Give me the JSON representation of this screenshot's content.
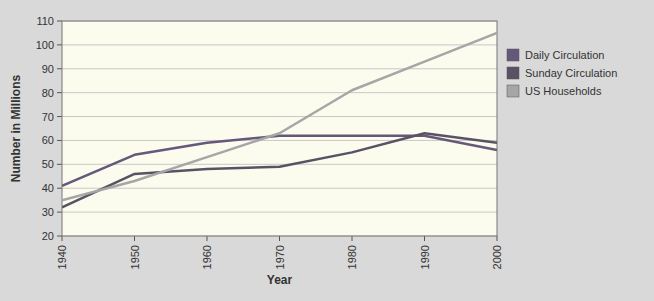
{
  "chart_data": {
    "type": "line",
    "x_label": "Year",
    "y_label": "Number in Millions",
    "x": [
      1940,
      1950,
      1960,
      1970,
      1980,
      1990,
      2000
    ],
    "xlim": [
      1940,
      2000
    ],
    "xticks": [
      1940,
      1950,
      1960,
      1970,
      1980,
      1990,
      2000
    ],
    "ylim": [
      20,
      110
    ],
    "yticks": [
      20,
      30,
      40,
      50,
      60,
      70,
      80,
      90,
      100,
      110
    ],
    "grid": true,
    "legend": "right",
    "series": [
      {
        "name": "Daily Circulation",
        "color": "#65587a",
        "values": [
          41,
          54,
          59,
          62,
          62,
          62,
          56
        ]
      },
      {
        "name": "Sunday Circulation",
        "color": "#5a5264",
        "values": [
          32,
          46,
          48,
          49,
          55,
          63,
          59
        ]
      },
      {
        "name": "US Households",
        "color": "#a6a6a6",
        "values": [
          35,
          43,
          53,
          63,
          81,
          93,
          105
        ]
      }
    ]
  }
}
